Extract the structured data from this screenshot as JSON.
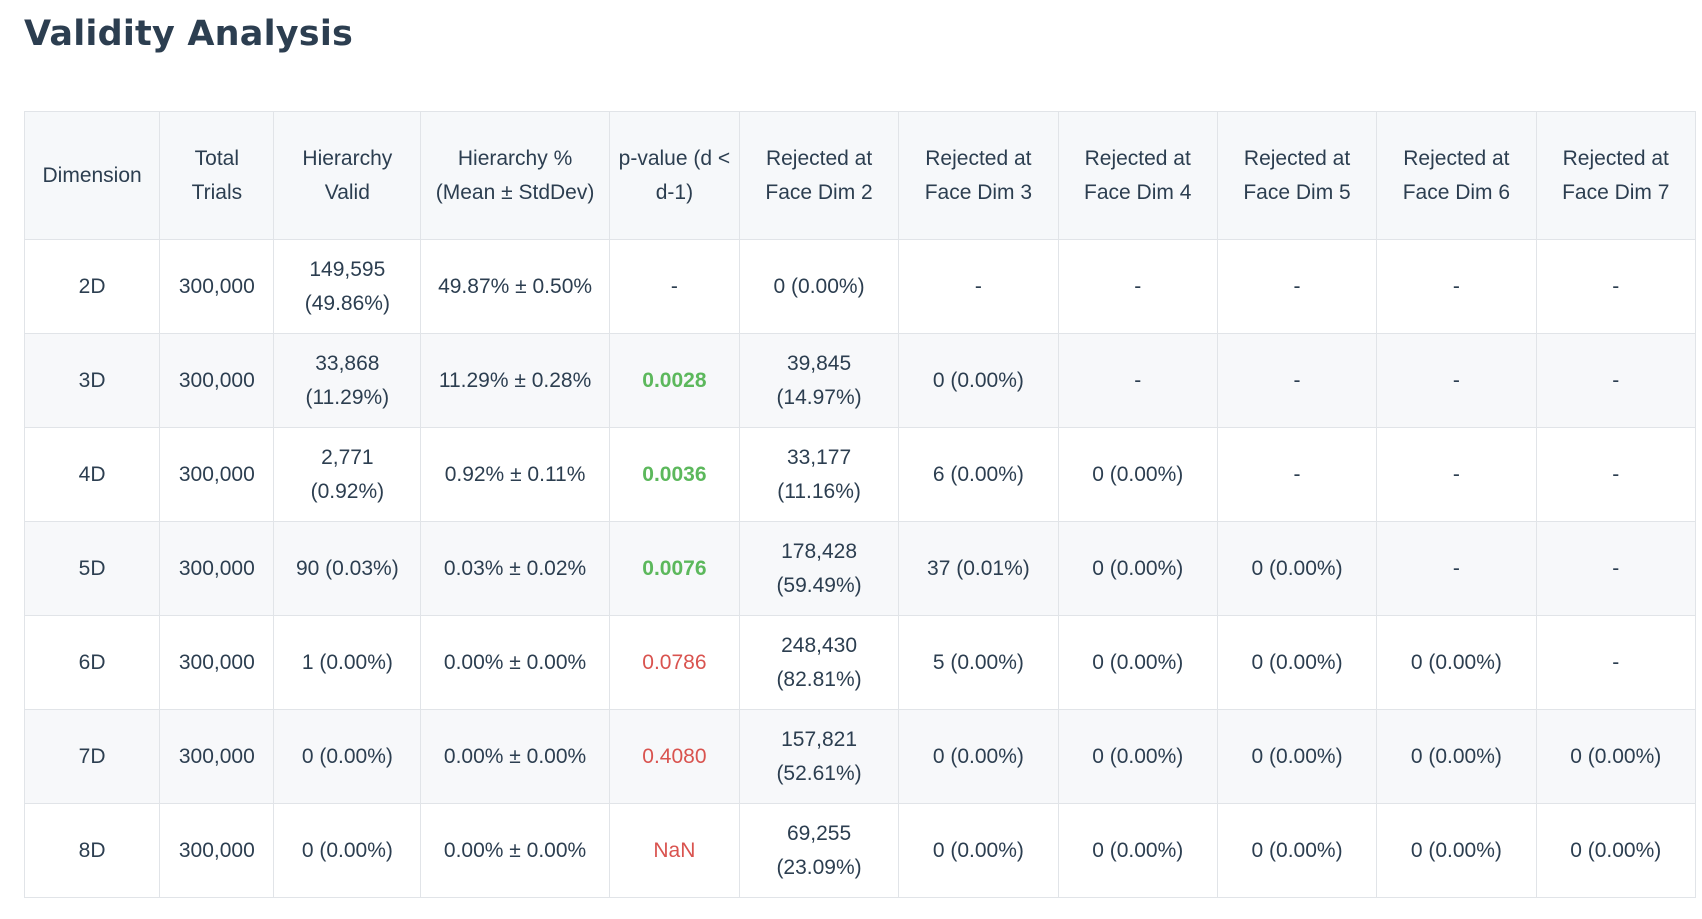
{
  "page": {
    "cut_heading": "p",
    "title": "Validity Analysis"
  },
  "colors": {
    "heading": "#2c3e50",
    "significant_p": "#5cb85c",
    "nonsignificant_p": "#d9534f",
    "header_bg": "#f6f8fa",
    "border": "#e1e4e8"
  },
  "table": {
    "headers": [
      "Dimension",
      "Total Trials",
      "Hierarchy Valid",
      "Hierarchy % (Mean ± StdDev)",
      "p-value (d < d-1)",
      "Rejected at Face Dim 2",
      "Rejected at Face Dim 3",
      "Rejected at Face Dim 4",
      "Rejected at Face Dim 5",
      "Rejected at Face Dim 6",
      "Rejected at Face Dim 7"
    ],
    "rows": [
      {
        "dimension": "2D",
        "total": "300,000",
        "valid": "149,595 (49.86%)",
        "pct": "49.87% ± 0.50%",
        "p": "-",
        "p_class": "",
        "f2": "0 (0.00%)",
        "f3": "-",
        "f4": "-",
        "f5": "-",
        "f6": "-",
        "f7": "-"
      },
      {
        "dimension": "3D",
        "total": "300,000",
        "valid": "33,868 (11.29%)",
        "pct": "11.29% ± 0.28%",
        "p": "0.0028",
        "p_class": "p-sig",
        "f2": "39,845 (14.97%)",
        "f3": "0 (0.00%)",
        "f4": "-",
        "f5": "-",
        "f6": "-",
        "f7": "-"
      },
      {
        "dimension": "4D",
        "total": "300,000",
        "valid": "2,771 (0.92%)",
        "pct": "0.92% ± 0.11%",
        "p": "0.0036",
        "p_class": "p-sig",
        "f2": "33,177 (11.16%)",
        "f3": "6 (0.00%)",
        "f4": "0 (0.00%)",
        "f5": "-",
        "f6": "-",
        "f7": "-"
      },
      {
        "dimension": "5D",
        "total": "300,000",
        "valid": "90 (0.03%)",
        "pct": "0.03% ± 0.02%",
        "p": "0.0076",
        "p_class": "p-sig",
        "f2": "178,428 (59.49%)",
        "f3": "37 (0.01%)",
        "f4": "0 (0.00%)",
        "f5": "0 (0.00%)",
        "f6": "-",
        "f7": "-"
      },
      {
        "dimension": "6D",
        "total": "300,000",
        "valid": "1 (0.00%)",
        "pct": "0.00% ± 0.00%",
        "p": "0.0786",
        "p_class": "p-nonsig",
        "f2": "248,430 (82.81%)",
        "f3": "5 (0.00%)",
        "f4": "0 (0.00%)",
        "f5": "0 (0.00%)",
        "f6": "0 (0.00%)",
        "f7": "-"
      },
      {
        "dimension": "7D",
        "total": "300,000",
        "valid": "0 (0.00%)",
        "pct": "0.00% ± 0.00%",
        "p": "0.4080",
        "p_class": "p-nonsig",
        "f2": "157,821 (52.61%)",
        "f3": "0 (0.00%)",
        "f4": "0 (0.00%)",
        "f5": "0 (0.00%)",
        "f6": "0 (0.00%)",
        "f7": "0 (0.00%)"
      },
      {
        "dimension": "8D",
        "total": "300,000",
        "valid": "0 (0.00%)",
        "pct": "0.00% ± 0.00%",
        "p": "NaN",
        "p_class": "p-nonsig",
        "f2": "69,255 (23.09%)",
        "f3": "0 (0.00%)",
        "f4": "0 (0.00%)",
        "f5": "0 (0.00%)",
        "f6": "0 (0.00%)",
        "f7": "0 (0.00%)"
      }
    ]
  }
}
